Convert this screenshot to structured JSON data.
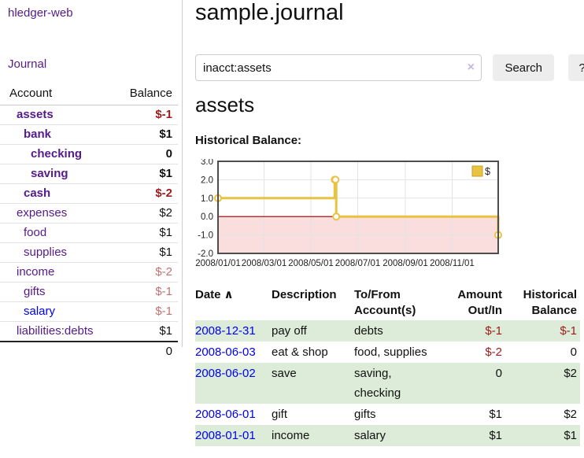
{
  "app": {
    "title": "hledger-web",
    "nav_journal": "Journal"
  },
  "colors": {
    "purple_visited_link": "#551a8b",
    "blue_link": "#0000ee",
    "negative_strong": "#9d1b1b",
    "negative_muted": "#c17373",
    "row_green": "#dcecd8",
    "chart_gold": "#e8c240",
    "chart_gold_border": "#c9a227",
    "chart_negative_bg": "#fadddd",
    "chart_zero_line": "#8b0000"
  },
  "sidebar": {
    "header": {
      "account": "Account",
      "balance": "Balance"
    },
    "accounts": [
      {
        "name": "assets",
        "depth": 1,
        "bold": true,
        "balance": "$-1",
        "tone": "neg-strong",
        "visited": true
      },
      {
        "name": "bank",
        "depth": 2,
        "bold": true,
        "balance": "$1",
        "tone": "plain",
        "visited": true
      },
      {
        "name": "checking",
        "depth": 3,
        "bold": true,
        "balance": "0",
        "tone": "plain",
        "visited": true
      },
      {
        "name": "saving",
        "depth": 3,
        "bold": true,
        "balance": "$1",
        "tone": "plain",
        "visited": true
      },
      {
        "name": "cash",
        "depth": 2,
        "bold": true,
        "balance": "$-2",
        "tone": "neg-strong",
        "visited": true
      },
      {
        "name": "expenses",
        "depth": 1,
        "bold": false,
        "balance": "$2",
        "tone": "plain",
        "visited": true
      },
      {
        "name": "food",
        "depth": 2,
        "bold": false,
        "balance": "$1",
        "tone": "plain",
        "visited": true
      },
      {
        "name": "supplies",
        "depth": 2,
        "bold": false,
        "balance": "$1",
        "tone": "plain",
        "visited": true
      },
      {
        "name": "income",
        "depth": 1,
        "bold": false,
        "balance": "$-2",
        "tone": "neg-muted",
        "visited": true
      },
      {
        "name": "gifts",
        "depth": 2,
        "bold": false,
        "balance": "$-1",
        "tone": "neg-muted",
        "visited": true
      },
      {
        "name": "salary",
        "depth": 2,
        "bold": false,
        "balance": "$-1",
        "tone": "neg-muted",
        "visited": false
      },
      {
        "name": "liabilities:debts",
        "depth": 1,
        "bold": false,
        "balance": "$1",
        "tone": "plain",
        "visited": true
      }
    ],
    "total_balance": "0"
  },
  "header": {
    "title": "sample.journal"
  },
  "search": {
    "value": "inacct:assets",
    "clear_icon": "×",
    "button_label": "Search",
    "help_label": "?"
  },
  "account_page": {
    "title": "assets",
    "chart_label": "Historical Balance:"
  },
  "chart_data": {
    "type": "line",
    "title": "Historical Balance:",
    "series": [
      {
        "name": "$",
        "color": "#e8c240",
        "step": true,
        "points": [
          [
            "2008-01-01",
            1
          ],
          [
            "2008-06-01",
            2
          ],
          [
            "2008-06-02",
            2
          ],
          [
            "2008-06-03",
            0
          ],
          [
            "2008-12-31",
            -1
          ]
        ]
      }
    ],
    "xlim": [
      "2008-01-01",
      "2008-12-31"
    ],
    "ylim": [
      -2,
      3
    ],
    "yticks": [
      3.0,
      2.0,
      1.0,
      0.0,
      -1.0,
      -2.0
    ],
    "ytick_labels": [
      "3.0",
      "2.0",
      "1.0",
      "0.0",
      "-1.0",
      "-2.0"
    ],
    "xticks": [
      "2008-01-01",
      "2008-03-01",
      "2008-05-01",
      "2008-07-01",
      "2008-09-01",
      "2008-11-01"
    ],
    "xtick_labels": [
      "2008/01/01",
      "2008/03/01",
      "2008/05/01",
      "2008/07/01",
      "2008/09/01",
      "2008/11/01"
    ],
    "grid": true,
    "legend": {
      "label": "$",
      "position": "top-right"
    },
    "negative_region_color": "#fadddd",
    "zero_line_color": "#8b0000"
  },
  "register": {
    "headers": [
      "Date",
      "Description",
      "To/From Account(s)",
      "Amount Out/In",
      "Historical Balance"
    ],
    "sort_icon": "∧",
    "rows": [
      {
        "date": "2008-12-31",
        "description": "pay off",
        "accounts": "debts",
        "amount": "$-1",
        "balance": "$-1",
        "green": true
      },
      {
        "date": "2008-06-03",
        "description": "eat & shop",
        "accounts": "food, supplies",
        "amount": "$-2",
        "balance": "0",
        "green": false
      },
      {
        "date": "2008-06-02",
        "description": "save",
        "accounts": "saving, checking",
        "amount": "0",
        "balance": "$2",
        "green": true
      },
      {
        "date": "2008-06-01",
        "description": "gift",
        "accounts": "gifts",
        "amount": "$1",
        "balance": "$2",
        "green": false
      },
      {
        "date": "2008-01-01",
        "description": "income",
        "accounts": "salary",
        "amount": "$1",
        "balance": "$1",
        "green": true
      }
    ]
  }
}
